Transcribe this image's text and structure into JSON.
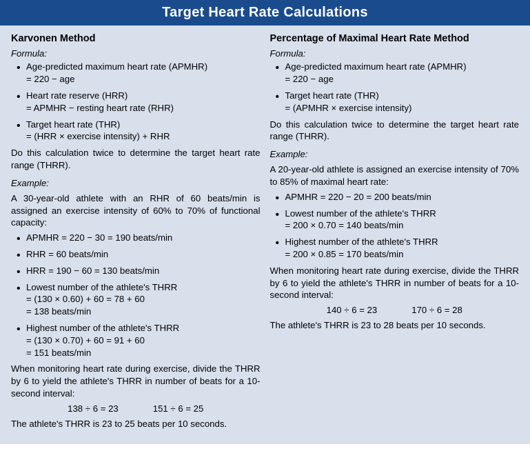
{
  "colors": {
    "headerBg": "#1a4b8c",
    "bodyBg": "#d8e0ec",
    "text": "#000000",
    "headerText": "#ffffff"
  },
  "title": "Target Heart Rate Calculations",
  "left": {
    "methodTitle": "Karvonen Method",
    "formulaLabel": "Formula:",
    "formula": [
      {
        "l1": "Age-predicted maximum heart rate (APMHR)",
        "l2": "= 220 − age"
      },
      {
        "l1": "Heart rate reserve (HRR)",
        "l2": "= APMHR − resting heart rate (RHR)"
      },
      {
        "l1": "Target heart rate (THR)",
        "l2": "= (HRR × exercise intensity) + RHR"
      }
    ],
    "note": "Do this calculation twice to determine the target heart rate range (THRR).",
    "exampleLabel": "Example:",
    "exampleIntro": "A 30-year-old athlete with an RHR of 60 beats/min is assigned an exercise intensity of 60% to 70% of functional capacity:",
    "exampleItems": [
      {
        "l1": "APMHR = 220 − 30 = 190 beats/min"
      },
      {
        "l1": "RHR = 60 beats/min"
      },
      {
        "l1": "HRR = 190 − 60 = 130 beats/min"
      },
      {
        "l1": "Lowest number of the athlete's THRR",
        "l2": "= (130 × 0.60) + 60 = 78 + 60",
        "l3": "= 138 beats/min"
      },
      {
        "l1": "Highest number of the athlete's THRR",
        "l2": "= (130 × 0.70) + 60 = 91 + 60",
        "l3": "= 151 beats/min"
      }
    ],
    "monitorNote": "When monitoring heart rate during exercise, divide the THRR by 6 to yield the athlete's THRR in number of beats for a 10-second interval:",
    "calcA": "138 ÷ 6 = 23",
    "calcB": "151 ÷ 6 = 25",
    "conclusion": "The athlete's THRR is 23 to 25 beats per 10 seconds."
  },
  "right": {
    "methodTitle": "Percentage of Maximal Heart Rate Method",
    "formulaLabel": "Formula:",
    "formula": [
      {
        "l1": "Age-predicted maximum heart rate (APMHR)",
        "l2": "= 220 − age"
      },
      {
        "l1": "Target heart rate (THR)",
        "l2": "= (APMHR × exercise intensity)"
      }
    ],
    "note": "Do this calculation twice to determine the target heart rate range (THRR).",
    "exampleLabel": "Example:",
    "exampleIntro": "A 20-year-old athlete is assigned an exercise intensity of 70% to 85% of maximal heart rate:",
    "exampleItems": [
      {
        "l1": "APMHR = 220 − 20 = 200 beats/min"
      },
      {
        "l1": "Lowest number of the athlete's THRR",
        "l2": "= 200 × 0.70 = 140 beats/min"
      },
      {
        "l1": "Highest number of the athlete's THRR",
        "l2": "= 200 × 0.85 = 170 beats/min"
      }
    ],
    "monitorNote": "When monitoring heart rate during exercise, divide the THRR by 6 to yield the athlete's THRR in number of beats for a 10-second interval:",
    "calcA": "140 ÷ 6 = 23",
    "calcB": "170 ÷ 6 = 28",
    "conclusion": "The athlete's THRR is 23 to 28 beats per 10 seconds."
  }
}
